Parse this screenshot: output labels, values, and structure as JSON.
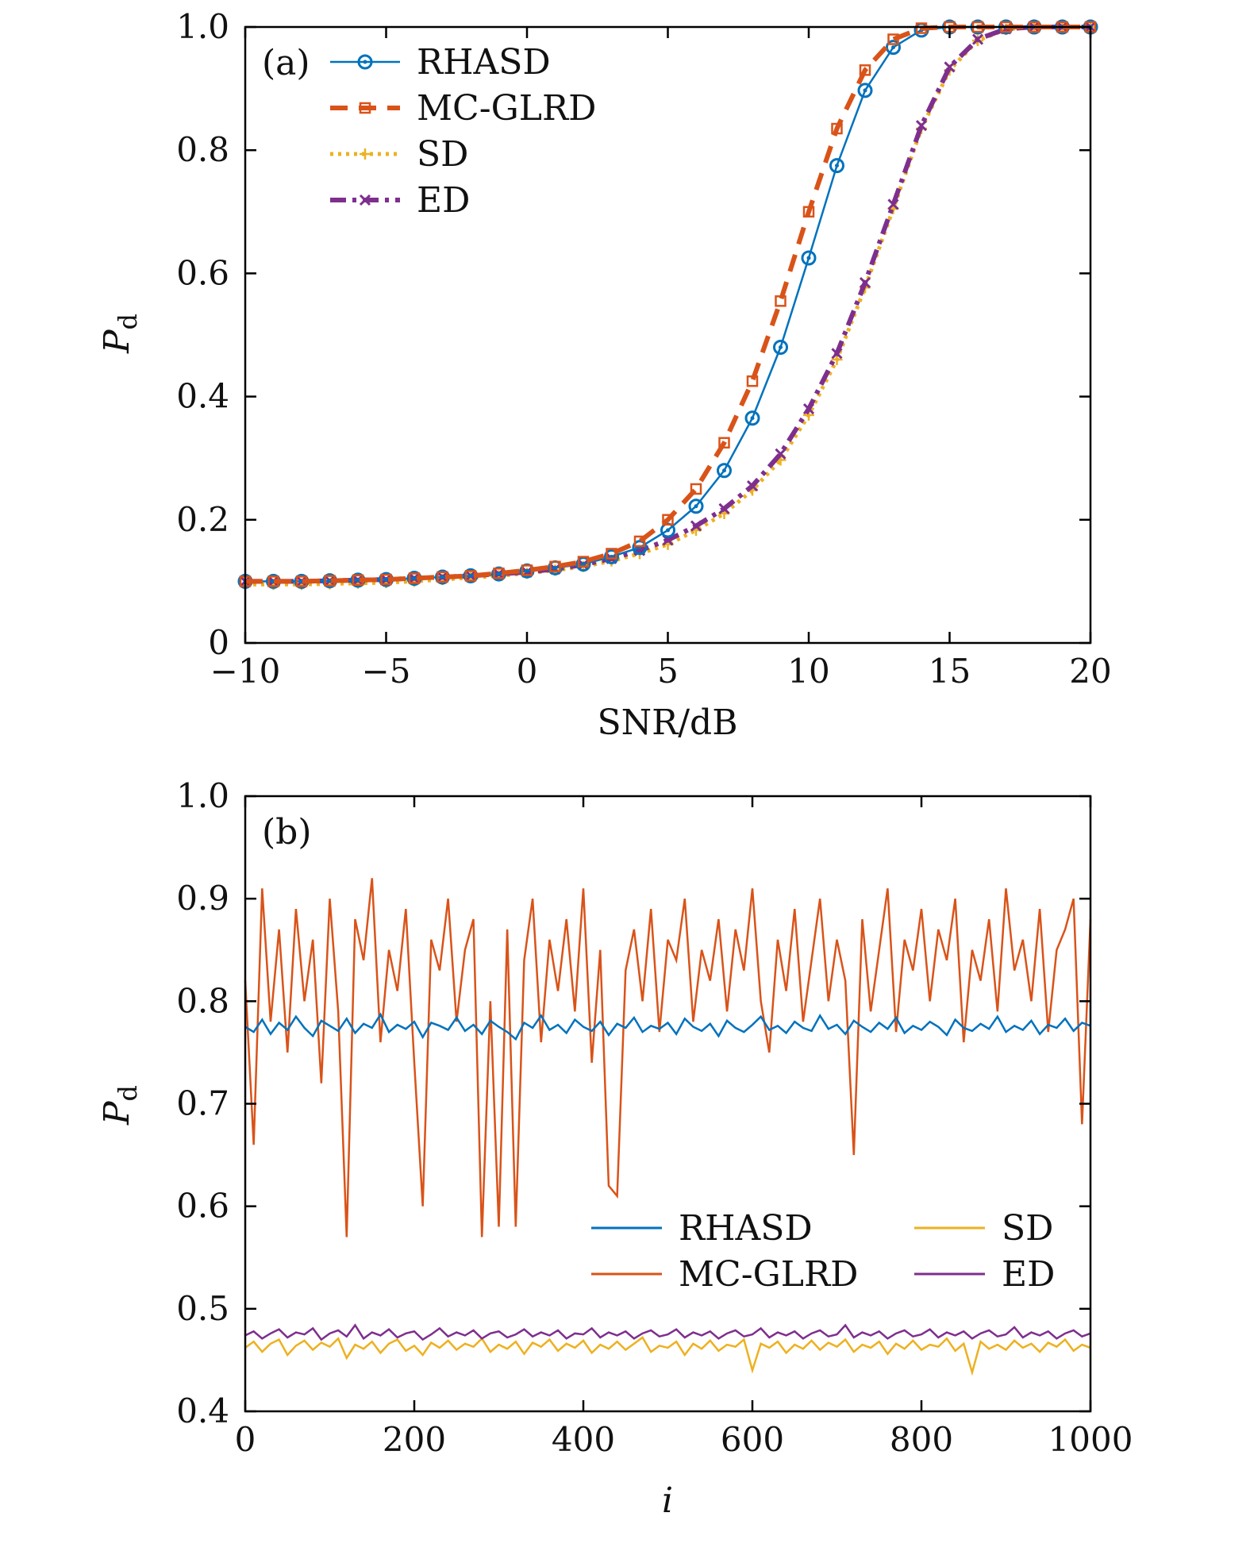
{
  "chart_data": [
    {
      "type": "line",
      "panel_label": "(a)",
      "xlabel": "SNR/dB",
      "ylabel": "P",
      "ylabel_sub": "d",
      "xlim": [
        -10,
        20
      ],
      "ylim": [
        0,
        1
      ],
      "xticks": [
        -10,
        -5,
        0,
        5,
        10,
        15,
        20
      ],
      "xtick_labels": [
        "−10",
        "−5",
        "0",
        "5",
        "10",
        "15",
        "20"
      ],
      "yticks": [
        0,
        0.2,
        0.4,
        0.6,
        0.8,
        1.0
      ],
      "ytick_labels": [
        "0",
        "0.2",
        "0.4",
        "0.6",
        "0.8",
        "1.0"
      ],
      "legend_position": "top-left",
      "x": [
        -10,
        -9,
        -8,
        -7,
        -6,
        -5,
        -4,
        -3,
        -2,
        -1,
        0,
        1,
        2,
        3,
        4,
        5,
        6,
        7,
        8,
        9,
        10,
        11,
        12,
        13,
        14,
        15,
        16,
        17,
        18,
        19,
        20
      ],
      "series": [
        {
          "name": "RHASD",
          "color": "#0072BD",
          "style": "solid",
          "marker": "circle",
          "values": [
            0.1,
            0.1,
            0.1,
            0.101,
            0.102,
            0.103,
            0.105,
            0.107,
            0.109,
            0.112,
            0.117,
            0.122,
            0.128,
            0.14,
            0.155,
            0.183,
            0.222,
            0.28,
            0.365,
            0.48,
            0.625,
            0.775,
            0.897,
            0.967,
            0.995,
            1,
            1,
            1,
            1,
            1,
            1
          ]
        },
        {
          "name": "MC-GLRD",
          "color": "#D95319",
          "style": "dashed",
          "marker": "square",
          "values": [
            0.1,
            0.1,
            0.1,
            0.101,
            0.102,
            0.103,
            0.105,
            0.107,
            0.109,
            0.113,
            0.118,
            0.124,
            0.132,
            0.145,
            0.165,
            0.2,
            0.25,
            0.325,
            0.425,
            0.555,
            0.7,
            0.835,
            0.93,
            0.98,
            0.998,
            1,
            1,
            1,
            1,
            1,
            1
          ]
        },
        {
          "name": "SD",
          "color": "#EDB120",
          "style": "dotted",
          "marker": "plus",
          "values": [
            0.095,
            0.095,
            0.095,
            0.096,
            0.097,
            0.098,
            0.1,
            0.103,
            0.106,
            0.109,
            0.113,
            0.118,
            0.124,
            0.133,
            0.145,
            0.16,
            0.183,
            0.21,
            0.248,
            0.297,
            0.37,
            0.46,
            0.577,
            0.705,
            0.835,
            0.93,
            0.978,
            0.996,
            1,
            1,
            1
          ]
        },
        {
          "name": "ED",
          "color": "#7E2F8E",
          "style": "dashdot",
          "marker": "x",
          "values": [
            0.1,
            0.1,
            0.1,
            0.101,
            0.102,
            0.103,
            0.105,
            0.107,
            0.109,
            0.112,
            0.115,
            0.12,
            0.127,
            0.137,
            0.15,
            0.167,
            0.19,
            0.218,
            0.255,
            0.307,
            0.38,
            0.47,
            0.585,
            0.712,
            0.84,
            0.935,
            0.98,
            0.997,
            1,
            1,
            1
          ]
        }
      ]
    },
    {
      "type": "line",
      "panel_label": "(b)",
      "xlabel": "i",
      "ylabel": "P",
      "ylabel_sub": "d",
      "xlim": [
        0,
        1000
      ],
      "ylim": [
        0.4,
        1.0
      ],
      "xticks": [
        0,
        200,
        400,
        600,
        800,
        1000
      ],
      "xtick_labels": [
        "0",
        "200",
        "400",
        "600",
        "800",
        "1000"
      ],
      "yticks": [
        0.4,
        0.5,
        0.6,
        0.7,
        0.8,
        0.9,
        1.0
      ],
      "ytick_labels": [
        "0.4",
        "0.5",
        "0.6",
        "0.7",
        "0.8",
        "0.9",
        "1.0"
      ],
      "legend_position": "lower-right (2 columns)",
      "x_step": 10,
      "series": [
        {
          "name": "RHASD",
          "color": "#0072BD",
          "values": [
            0.775,
            0.77,
            0.782,
            0.768,
            0.779,
            0.772,
            0.785,
            0.774,
            0.766,
            0.781,
            0.776,
            0.771,
            0.783,
            0.769,
            0.778,
            0.774,
            0.787,
            0.77,
            0.777,
            0.773,
            0.78,
            0.765,
            0.779,
            0.776,
            0.772,
            0.784,
            0.771,
            0.777,
            0.768,
            0.781,
            0.775,
            0.77,
            0.763,
            0.779,
            0.774,
            0.786,
            0.772,
            0.777,
            0.769,
            0.782,
            0.775,
            0.771,
            0.78,
            0.767,
            0.778,
            0.774,
            0.784,
            0.77,
            0.776,
            0.773,
            0.779,
            0.768,
            0.783,
            0.775,
            0.771,
            0.778,
            0.766,
            0.781,
            0.774,
            0.77,
            0.777,
            0.785,
            0.772,
            0.776,
            0.769,
            0.78,
            0.774,
            0.771,
            0.786,
            0.773,
            0.777,
            0.768,
            0.781,
            0.775,
            0.77,
            0.779,
            0.773,
            0.784,
            0.769,
            0.776,
            0.772,
            0.78,
            0.775,
            0.767,
            0.782,
            0.774,
            0.771,
            0.778,
            0.773,
            0.785,
            0.77,
            0.776,
            0.772,
            0.781,
            0.768,
            0.777,
            0.774,
            0.783,
            0.771,
            0.779,
            0.776
          ]
        },
        {
          "name": "MC-GLRD",
          "color": "#D95319",
          "values": [
            0.82,
            0.66,
            0.91,
            0.78,
            0.87,
            0.75,
            0.89,
            0.8,
            0.86,
            0.72,
            0.9,
            0.79,
            0.57,
            0.88,
            0.84,
            0.92,
            0.76,
            0.85,
            0.81,
            0.89,
            0.74,
            0.6,
            0.86,
            0.83,
            0.9,
            0.78,
            0.85,
            0.88,
            0.57,
            0.8,
            0.58,
            0.87,
            0.58,
            0.84,
            0.9,
            0.76,
            0.86,
            0.81,
            0.88,
            0.79,
            0.91,
            0.74,
            0.85,
            0.62,
            0.61,
            0.83,
            0.87,
            0.8,
            0.89,
            0.77,
            0.86,
            0.84,
            0.9,
            0.78,
            0.85,
            0.82,
            0.88,
            0.79,
            0.87,
            0.83,
            0.91,
            0.8,
            0.75,
            0.86,
            0.81,
            0.89,
            0.78,
            0.84,
            0.9,
            0.8,
            0.86,
            0.82,
            0.65,
            0.88,
            0.79,
            0.85,
            0.91,
            0.77,
            0.86,
            0.83,
            0.89,
            0.8,
            0.87,
            0.84,
            0.9,
            0.76,
            0.85,
            0.82,
            0.88,
            0.79,
            0.91,
            0.83,
            0.86,
            0.8,
            0.89,
            0.77,
            0.85,
            0.87,
            0.9,
            0.68,
            0.88
          ]
        },
        {
          "name": "SD",
          "color": "#EDB120",
          "values": [
            0.462,
            0.468,
            0.458,
            0.466,
            0.47,
            0.455,
            0.464,
            0.469,
            0.46,
            0.467,
            0.463,
            0.471,
            0.452,
            0.465,
            0.461,
            0.468,
            0.457,
            0.466,
            0.47,
            0.459,
            0.464,
            0.455,
            0.467,
            0.462,
            0.469,
            0.46,
            0.466,
            0.463,
            0.471,
            0.458,
            0.465,
            0.461,
            0.468,
            0.456,
            0.467,
            0.463,
            0.47,
            0.459,
            0.466,
            0.462,
            0.469,
            0.457,
            0.465,
            0.461,
            0.468,
            0.46,
            0.466,
            0.472,
            0.458,
            0.464,
            0.462,
            0.468,
            0.455,
            0.466,
            0.461,
            0.469,
            0.459,
            0.465,
            0.463,
            0.47,
            0.44,
            0.466,
            0.462,
            0.468,
            0.457,
            0.465,
            0.461,
            0.469,
            0.46,
            0.467,
            0.463,
            0.47,
            0.458,
            0.465,
            0.462,
            0.468,
            0.456,
            0.466,
            0.461,
            0.469,
            0.46,
            0.465,
            0.463,
            0.471,
            0.459,
            0.466,
            0.438,
            0.468,
            0.461,
            0.465,
            0.46,
            0.469,
            0.462,
            0.466,
            0.458,
            0.467,
            0.463,
            0.47,
            0.459,
            0.465,
            0.462
          ]
        },
        {
          "name": "ED",
          "color": "#7E2F8E",
          "values": [
            0.474,
            0.478,
            0.471,
            0.476,
            0.48,
            0.472,
            0.477,
            0.475,
            0.481,
            0.47,
            0.476,
            0.479,
            0.473,
            0.484,
            0.471,
            0.477,
            0.474,
            0.48,
            0.472,
            0.476,
            0.478,
            0.47,
            0.475,
            0.481,
            0.473,
            0.477,
            0.474,
            0.479,
            0.471,
            0.476,
            0.478,
            0.472,
            0.475,
            0.48,
            0.473,
            0.477,
            0.474,
            0.479,
            0.471,
            0.476,
            0.475,
            0.481,
            0.472,
            0.477,
            0.474,
            0.478,
            0.471,
            0.476,
            0.479,
            0.473,
            0.475,
            0.48,
            0.472,
            0.477,
            0.474,
            0.478,
            0.471,
            0.476,
            0.479,
            0.473,
            0.475,
            0.481,
            0.472,
            0.477,
            0.474,
            0.478,
            0.471,
            0.476,
            0.479,
            0.473,
            0.475,
            0.484,
            0.472,
            0.477,
            0.474,
            0.478,
            0.471,
            0.476,
            0.479,
            0.473,
            0.475,
            0.48,
            0.472,
            0.477,
            0.474,
            0.478,
            0.471,
            0.476,
            0.479,
            0.473,
            0.475,
            0.482,
            0.472,
            0.477,
            0.474,
            0.478,
            0.471,
            0.476,
            0.479,
            0.473,
            0.476
          ]
        }
      ]
    }
  ]
}
